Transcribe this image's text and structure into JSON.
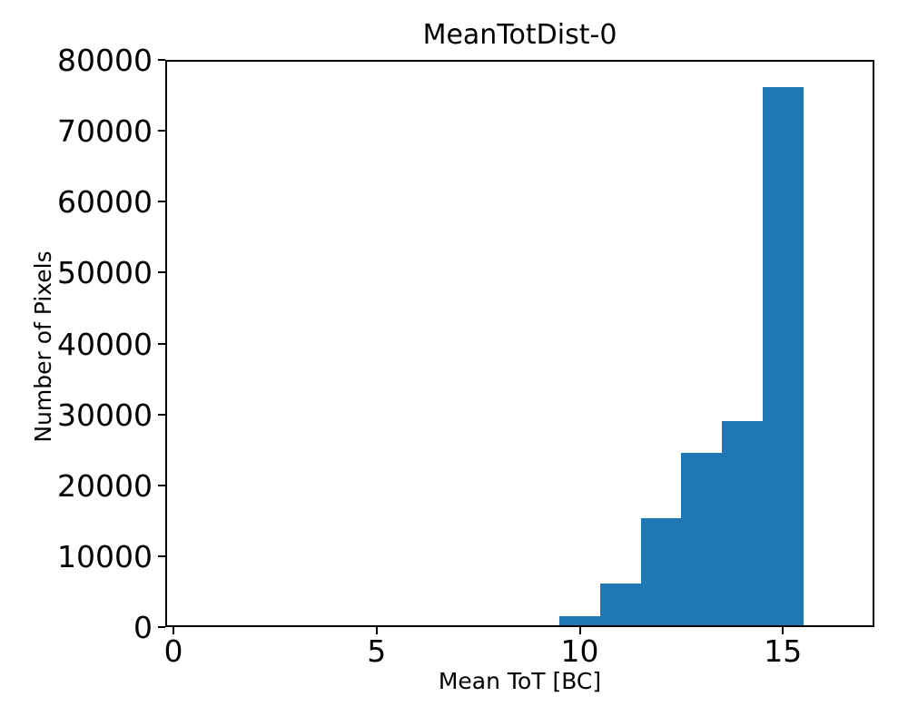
{
  "figure": {
    "background": "#ffffff",
    "text_color": "#000000"
  },
  "chart_data": {
    "type": "bar",
    "subtype": "histogram",
    "title": "MeanTotDist-0",
    "xlabel": "Mean ToT [BC]",
    "ylabel": "Number of Pixels",
    "bar_color": "#1f77b4",
    "axis_color": "#000000",
    "grid": false,
    "legend": null,
    "xlim": [
      -0.2,
      17.25
    ],
    "ylim": [
      0,
      80000
    ],
    "xticks": [
      0,
      5,
      10,
      15
    ],
    "yticks": [
      0,
      10000,
      20000,
      30000,
      40000,
      50000,
      60000,
      70000,
      80000
    ],
    "bin_edges": [
      8.5,
      9.5,
      10.5,
      11.5,
      12.5,
      13.5,
      14.5,
      15.5
    ],
    "counts": [
      300,
      1600,
      6200,
      15300,
      24600,
      29100,
      76100
    ]
  }
}
